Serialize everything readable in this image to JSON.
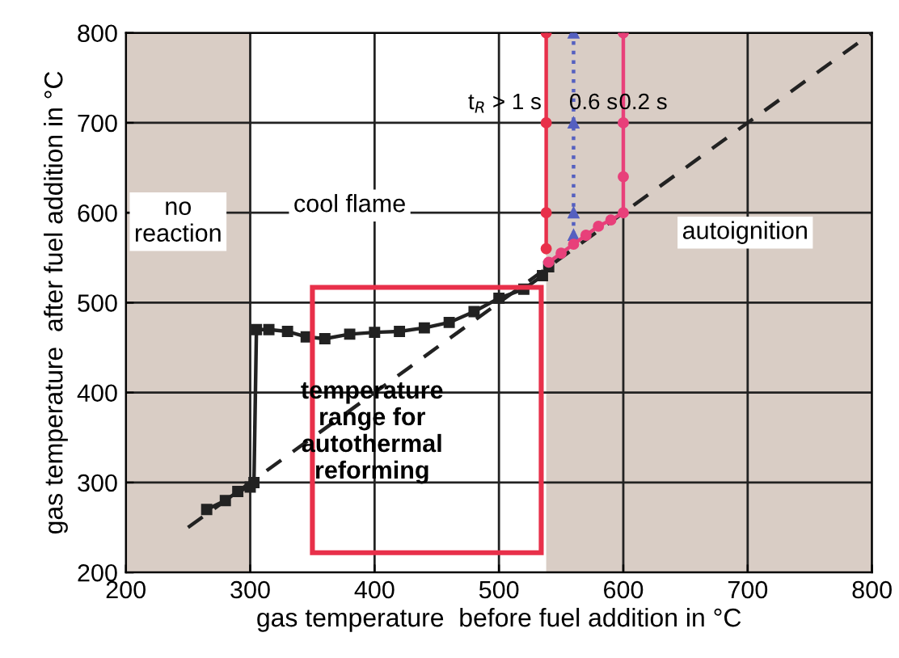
{
  "chart_data": {
    "type": "line",
    "xlabel": "gas temperature  before fuel addition in °C",
    "ylabel": "gas temperature  after fuel addition in °C",
    "xlim": [
      200,
      800
    ],
    "ylim": [
      200,
      800
    ],
    "xticks": [
      200,
      300,
      400,
      500,
      600,
      700,
      800
    ],
    "yticks": [
      200,
      300,
      400,
      500,
      600,
      700,
      800
    ],
    "grid": true,
    "bands": [
      {
        "axis": "x",
        "from": 200,
        "to": 300,
        "color": "#d9cdc5"
      },
      {
        "axis": "x",
        "from": 538,
        "to": 800,
        "color": "#d9cdc5"
      }
    ],
    "series": [
      {
        "color": "#222222",
        "line_style": "dashed",
        "marker": "none",
        "x": [
          250,
          800
        ],
        "values": [
          250,
          800
        ]
      },
      {
        "color": "#222222",
        "line_style": "solid",
        "marker": "square",
        "x": [
          265,
          280,
          290,
          300,
          303,
          305,
          315,
          330,
          345,
          360,
          380,
          400,
          420,
          440,
          460,
          480,
          500,
          520,
          535,
          540
        ],
        "values": [
          270,
          280,
          290,
          295,
          300,
          470,
          470,
          468,
          462,
          460,
          465,
          467,
          468,
          472,
          478,
          490,
          505,
          515,
          530,
          540
        ]
      },
      {
        "color": "#e8304a",
        "line_style": "solid",
        "marker": "circle",
        "x": [
          538,
          538,
          538,
          538
        ],
        "values": [
          560,
          600,
          700,
          800
        ]
      },
      {
        "color": "#5560c0",
        "line_style": "dotted",
        "marker": "triangle",
        "x": [
          560,
          560,
          560,
          560
        ],
        "values": [
          575,
          600,
          700,
          800
        ]
      },
      {
        "color": "#e8407a",
        "line_style": "solid",
        "marker": "circle",
        "x": [
          540,
          550,
          560,
          570,
          580,
          590,
          600,
          600,
          600,
          600
        ],
        "values": [
          545,
          555,
          565,
          575,
          585,
          592,
          600,
          640,
          700,
          800
        ]
      }
    ],
    "annotations": [
      "no\nreaction",
      "cool flame",
      "autoignition",
      "temperature\nrange for\nautothermal\nreforming",
      {
        "text": "t$_{R}$ > 1 s",
        "x": 538,
        "y": 700
      },
      {
        "text": "0.6 s",
        "x": 560,
        "y": 700
      },
      {
        "text": "0.2 s",
        "x": 600,
        "y": 700
      }
    ]
  }
}
